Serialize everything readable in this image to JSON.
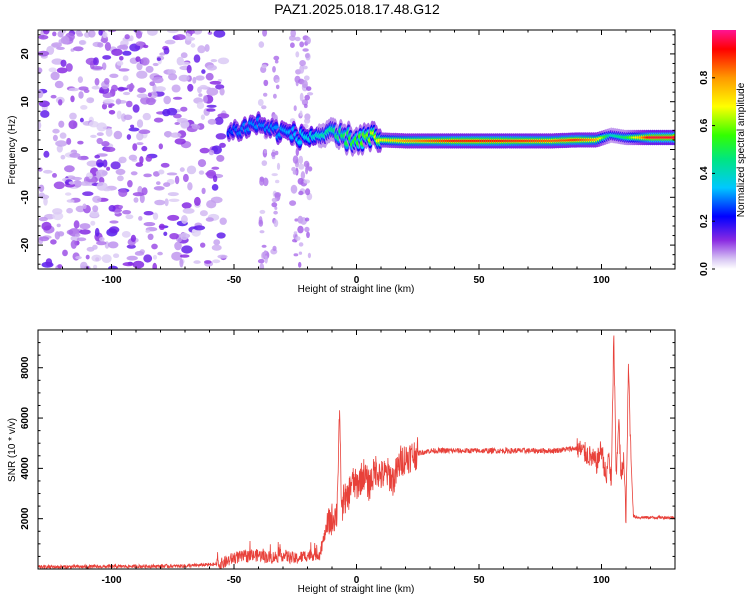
{
  "title": "PAZ1.2025.018.17.48.G12",
  "chart_data": [
    {
      "type": "heatmap",
      "xlabel": "Height of straight line (km)",
      "ylabel": "Frequency (Hz)",
      "xlim": [
        -130,
        130
      ],
      "ylim": [
        -25,
        25
      ],
      "xticks": [
        -100,
        -50,
        0,
        50,
        100
      ],
      "xtick_labels": [
        "-100",
        "-50",
        "0",
        "50",
        "100"
      ],
      "yticks": [
        -20,
        -10,
        0,
        10,
        20
      ],
      "ytick_labels": [
        "-20",
        "-10",
        "0",
        "10",
        "20"
      ],
      "colorbar": {
        "label": "Normalized spectral amplitude",
        "range": [
          0,
          1
        ],
        "ticks": [
          0.0,
          0.2,
          0.4,
          0.6,
          0.8
        ],
        "tick_labels": [
          "0.0",
          "0.2",
          "0.4",
          "0.6",
          "0.8"
        ],
        "colormap": "rainbow (white-purple-blue-cyan-green-yellow-orange-red-magenta)"
      },
      "ridge": [
        {
          "x": -52,
          "freq": 3.5,
          "amp": 0.25
        },
        {
          "x": -46,
          "freq": 4.5,
          "amp": 0.3
        },
        {
          "x": -40,
          "freq": 5.5,
          "amp": 0.3
        },
        {
          "x": -34,
          "freq": 4.0,
          "amp": 0.3
        },
        {
          "x": -28,
          "freq": 3.5,
          "amp": 0.32
        },
        {
          "x": -22,
          "freq": 2.5,
          "amp": 0.35
        },
        {
          "x": -16,
          "freq": 3.0,
          "amp": 0.4
        },
        {
          "x": -10,
          "freq": 3.0,
          "amp": 0.45
        },
        {
          "x": -5,
          "freq": 2.5,
          "amp": 0.5
        },
        {
          "x": 0,
          "freq": 2.0,
          "amp": 0.55
        },
        {
          "x": 5,
          "freq": 2.5,
          "amp": 0.6
        },
        {
          "x": 10,
          "freq": 2.0,
          "amp": 0.7
        },
        {
          "x": 20,
          "freq": 1.8,
          "amp": 0.8
        },
        {
          "x": 30,
          "freq": 1.8,
          "amp": 0.85
        },
        {
          "x": 40,
          "freq": 1.8,
          "amp": 0.9
        },
        {
          "x": 50,
          "freq": 1.8,
          "amp": 0.9
        },
        {
          "x": 60,
          "freq": 1.8,
          "amp": 0.9
        },
        {
          "x": 70,
          "freq": 1.8,
          "amp": 0.88
        },
        {
          "x": 80,
          "freq": 1.8,
          "amp": 0.85
        },
        {
          "x": 90,
          "freq": 2.0,
          "amp": 0.88
        },
        {
          "x": 98,
          "freq": 2.0,
          "amp": 0.8
        },
        {
          "x": 104,
          "freq": 3.0,
          "amp": 0.4
        },
        {
          "x": 110,
          "freq": 2.5,
          "amp": 0.5
        },
        {
          "x": 120,
          "freq": 2.5,
          "amp": 0.95
        },
        {
          "x": 130,
          "freq": 2.5,
          "amp": 0.95
        }
      ],
      "noise_region_x": [
        -130,
        -57
      ],
      "noise_streaks_x": [
        -38,
        -33,
        -25,
        -22,
        -20
      ]
    },
    {
      "type": "line",
      "xlabel": "Height of straight line (km)",
      "ylabel": "SNR (10 * v/v)",
      "xlim": [
        -130,
        130
      ],
      "ylim": [
        0,
        9500
      ],
      "xticks": [
        -100,
        -50,
        0,
        50,
        100
      ],
      "xtick_labels": [
        "-100",
        "-50",
        "0",
        "50",
        "100"
      ],
      "yticks": [
        2000,
        4000,
        6000,
        8000
      ],
      "ytick_labels": [
        "2000",
        "4000",
        "6000",
        "8000"
      ],
      "color": "#e8413a",
      "x": [
        -130,
        -100,
        -70,
        -55,
        -50,
        -45,
        -40,
        -35,
        -30,
        -25,
        -20,
        -15,
        -12,
        -10,
        -8,
        -7,
        -6,
        -5,
        -4,
        -2,
        0,
        3,
        5,
        8,
        10,
        13,
        15,
        18,
        20,
        25,
        30,
        35,
        40,
        50,
        60,
        70,
        80,
        90,
        95,
        98,
        100,
        102,
        103,
        104,
        105,
        106,
        107,
        108,
        109,
        110,
        111,
        112,
        113,
        115,
        120,
        130
      ],
      "y": [
        80,
        100,
        120,
        200,
        450,
        500,
        550,
        450,
        550,
        400,
        550,
        600,
        1700,
        2000,
        2200,
        6200,
        2200,
        3000,
        2600,
        3500,
        3300,
        3800,
        3300,
        4000,
        3700,
        3800,
        3500,
        4300,
        4400,
        4600,
        4700,
        4700,
        4700,
        4700,
        4700,
        4700,
        4700,
        4800,
        4500,
        4200,
        4800,
        3500,
        4700,
        3200,
        9500,
        3500,
        6100,
        3500,
        4500,
        2000,
        8200,
        4500,
        2100,
        2050,
        2050,
        2050
      ]
    }
  ]
}
